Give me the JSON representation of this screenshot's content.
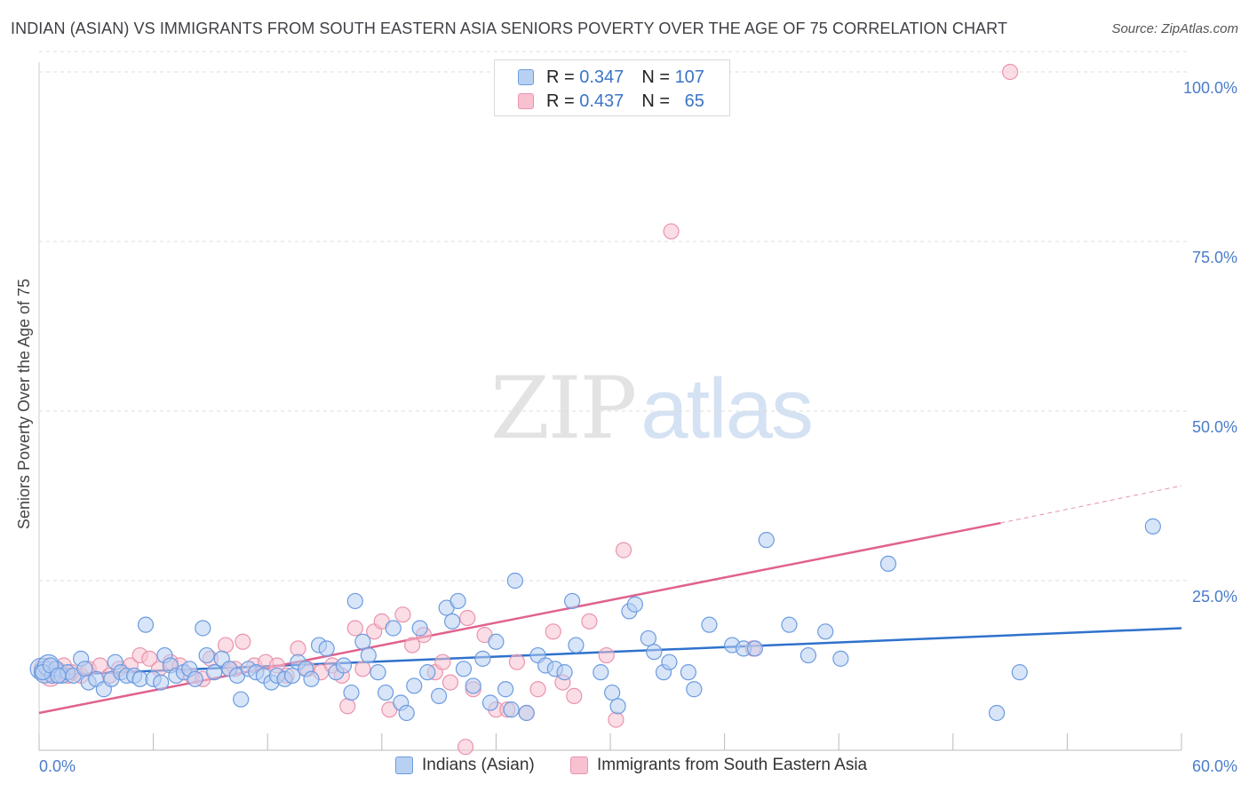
{
  "title": "INDIAN (ASIAN) VS IMMIGRANTS FROM SOUTH EASTERN ASIA SENIORS POVERTY OVER THE AGE OF 75 CORRELATION CHART",
  "source": "Source: ZipAtlas.com",
  "watermark": {
    "zip": "ZIP",
    "atlas": "atlas"
  },
  "legend": {
    "r_label": "R =",
    "n_label": "N =",
    "rows": [
      {
        "r": "0.347",
        "n": "107"
      },
      {
        "r": "0.437",
        "n": "65"
      }
    ]
  },
  "colors": {
    "blue_fill": "#b8d0f2",
    "blue_stroke": "#6c9be0",
    "blue_line": "#2f72cc",
    "pink_fill": "#f7c1d0",
    "pink_stroke": "#ea94ad",
    "pink_line": "#e0628d",
    "tick_label": "#4a7cc9",
    "grid": "#dddddd"
  },
  "chart_data": {
    "type": "scatter",
    "title": "INDIAN (ASIAN) VS IMMIGRANTS FROM SOUTH EASTERN ASIA SENIORS POVERTY OVER THE AGE OF 75 CORRELATION CHART",
    "xlabel": "",
    "ylabel": "Seniors Poverty Over the Age of 75",
    "xlim": [
      0,
      60
    ],
    "ylim": [
      0,
      103
    ],
    "x_tick_labels": [
      "0.0%",
      "60.0%"
    ],
    "y_tick_labels": [
      "25.0%",
      "50.0%",
      "75.0%",
      "100.0%"
    ],
    "y_tick_values": [
      25,
      50,
      75,
      100
    ],
    "grid": "horizontal dashed",
    "legend_position": "top-center",
    "series": [
      {
        "name": "Indians (Asian)",
        "color": "#6c9be0",
        "trend": {
          "x": [
            0,
            60
          ],
          "y": [
            11.0,
            18.0
          ]
        },
        "points": [
          [
            0.1,
            12.0
          ],
          [
            0.3,
            11.5
          ],
          [
            0.5,
            12.5
          ],
          [
            0.7,
            11.0
          ],
          [
            0.9,
            12.0
          ],
          [
            1.2,
            11.0
          ],
          [
            1.5,
            11.5
          ],
          [
            1.8,
            11.0
          ],
          [
            2.2,
            13.5
          ],
          [
            2.4,
            12.0
          ],
          [
            2.6,
            10.0
          ],
          [
            3.0,
            10.5
          ],
          [
            3.4,
            9.0
          ],
          [
            3.8,
            10.5
          ],
          [
            4.0,
            13.0
          ],
          [
            4.3,
            11.5
          ],
          [
            4.6,
            11.0
          ],
          [
            5.0,
            11.0
          ],
          [
            5.3,
            10.5
          ],
          [
            5.6,
            18.5
          ],
          [
            6.0,
            10.5
          ],
          [
            6.4,
            10.0
          ],
          [
            6.6,
            14.0
          ],
          [
            6.9,
            12.5
          ],
          [
            7.2,
            11.0
          ],
          [
            7.6,
            11.5
          ],
          [
            7.9,
            12.0
          ],
          [
            8.2,
            10.5
          ],
          [
            8.6,
            18.0
          ],
          [
            8.8,
            14.0
          ],
          [
            9.2,
            11.5
          ],
          [
            9.6,
            13.5
          ],
          [
            10.0,
            12.0
          ],
          [
            10.4,
            11.0
          ],
          [
            10.6,
            7.5
          ],
          [
            11.0,
            12.0
          ],
          [
            11.4,
            11.5
          ],
          [
            11.8,
            11.0
          ],
          [
            12.2,
            10.0
          ],
          [
            12.5,
            11.0
          ],
          [
            12.9,
            10.5
          ],
          [
            13.3,
            11.0
          ],
          [
            13.6,
            13.0
          ],
          [
            14.0,
            12.0
          ],
          [
            14.3,
            10.5
          ],
          [
            14.7,
            15.5
          ],
          [
            15.1,
            15.0
          ],
          [
            15.6,
            11.5
          ],
          [
            16.0,
            12.5
          ],
          [
            16.4,
            8.5
          ],
          [
            16.6,
            22.0
          ],
          [
            17.0,
            16.0
          ],
          [
            17.3,
            14.0
          ],
          [
            17.8,
            11.5
          ],
          [
            18.2,
            8.5
          ],
          [
            18.6,
            18.0
          ],
          [
            19.0,
            7.0
          ],
          [
            19.3,
            5.5
          ],
          [
            19.7,
            9.5
          ],
          [
            20.0,
            18.0
          ],
          [
            20.4,
            11.5
          ],
          [
            21.0,
            8.0
          ],
          [
            21.4,
            21.0
          ],
          [
            21.7,
            19.0
          ],
          [
            22.0,
            22.0
          ],
          [
            22.3,
            12.0
          ],
          [
            22.8,
            9.5
          ],
          [
            23.3,
            13.5
          ],
          [
            23.7,
            7.0
          ],
          [
            24.0,
            16.0
          ],
          [
            24.5,
            9.0
          ],
          [
            24.8,
            6.0
          ],
          [
            25.0,
            25.0
          ],
          [
            25.6,
            5.5
          ],
          [
            26.2,
            14.0
          ],
          [
            26.6,
            12.5
          ],
          [
            27.1,
            12.0
          ],
          [
            27.6,
            11.5
          ],
          [
            28.0,
            22.0
          ],
          [
            28.2,
            15.5
          ],
          [
            29.5,
            11.5
          ],
          [
            30.1,
            8.5
          ],
          [
            30.4,
            6.5
          ],
          [
            31.0,
            20.5
          ],
          [
            31.3,
            21.5
          ],
          [
            32.0,
            16.5
          ],
          [
            32.3,
            14.5
          ],
          [
            32.8,
            11.5
          ],
          [
            33.1,
            13.0
          ],
          [
            34.1,
            11.5
          ],
          [
            34.4,
            9.0
          ],
          [
            35.2,
            18.5
          ],
          [
            36.4,
            15.5
          ],
          [
            37.0,
            15.0
          ],
          [
            37.6,
            15.0
          ],
          [
            38.2,
            31.0
          ],
          [
            39.4,
            18.5
          ],
          [
            40.4,
            14.0
          ],
          [
            41.3,
            17.5
          ],
          [
            42.1,
            13.5
          ],
          [
            44.6,
            27.5
          ],
          [
            50.3,
            5.5
          ],
          [
            51.5,
            11.5
          ],
          [
            58.5,
            33.0
          ],
          [
            0.2,
            11.5
          ],
          [
            0.6,
            12.5
          ],
          [
            1.0,
            11.0
          ]
        ]
      },
      {
        "name": "Immigrants from South Eastern Asia",
        "color": "#ea94ad",
        "trend": {
          "x": [
            0,
            50.5
          ],
          "y": [
            5.5,
            33.5
          ],
          "dashed_x": [
            50.5,
            60
          ],
          "dashed_y": [
            33.5,
            39.0
          ]
        },
        "points": [
          [
            0.3,
            12.0
          ],
          [
            0.6,
            11.0
          ],
          [
            0.9,
            11.5
          ],
          [
            1.3,
            12.5
          ],
          [
            1.7,
            11.5
          ],
          [
            2.2,
            11.0
          ],
          [
            2.6,
            12.0
          ],
          [
            3.2,
            12.5
          ],
          [
            3.7,
            11.0
          ],
          [
            4.2,
            12.0
          ],
          [
            4.8,
            12.5
          ],
          [
            5.3,
            14.0
          ],
          [
            5.8,
            13.5
          ],
          [
            6.3,
            12.0
          ],
          [
            6.9,
            13.0
          ],
          [
            7.4,
            12.5
          ],
          [
            8.0,
            11.0
          ],
          [
            8.6,
            10.5
          ],
          [
            9.0,
            13.5
          ],
          [
            9.8,
            15.5
          ],
          [
            10.3,
            12.0
          ],
          [
            10.7,
            16.0
          ],
          [
            11.3,
            12.5
          ],
          [
            11.9,
            13.0
          ],
          [
            12.5,
            12.5
          ],
          [
            13.0,
            11.0
          ],
          [
            13.6,
            15.0
          ],
          [
            14.1,
            12.0
          ],
          [
            14.8,
            11.5
          ],
          [
            15.4,
            12.5
          ],
          [
            15.9,
            11.0
          ],
          [
            16.2,
            6.5
          ],
          [
            16.6,
            18.0
          ],
          [
            17.0,
            12.0
          ],
          [
            17.6,
            17.5
          ],
          [
            18.0,
            19.0
          ],
          [
            18.4,
            6.0
          ],
          [
            19.1,
            20.0
          ],
          [
            19.6,
            15.5
          ],
          [
            20.2,
            17.0
          ],
          [
            20.8,
            11.5
          ],
          [
            21.2,
            13.0
          ],
          [
            21.6,
            10.0
          ],
          [
            22.5,
            19.5
          ],
          [
            22.8,
            9.0
          ],
          [
            22.4,
            0.5
          ],
          [
            23.4,
            17.0
          ],
          [
            24.0,
            6.0
          ],
          [
            24.6,
            6.0
          ],
          [
            25.1,
            13.0
          ],
          [
            25.6,
            5.5
          ],
          [
            26.2,
            9.0
          ],
          [
            27.0,
            17.5
          ],
          [
            27.5,
            10.0
          ],
          [
            28.1,
            8.0
          ],
          [
            28.9,
            19.0
          ],
          [
            29.8,
            14.0
          ],
          [
            30.3,
            4.5
          ],
          [
            30.7,
            29.5
          ],
          [
            33.2,
            76.5
          ],
          [
            37.5,
            15.0
          ],
          [
            51.0,
            100.0
          ],
          [
            0.8,
            12.0
          ],
          [
            1.5,
            11.0
          ],
          [
            10.0,
            12.0
          ]
        ]
      }
    ]
  },
  "bottom_legend": [
    "Indians (Asian)",
    "Immigrants from South Eastern Asia"
  ]
}
